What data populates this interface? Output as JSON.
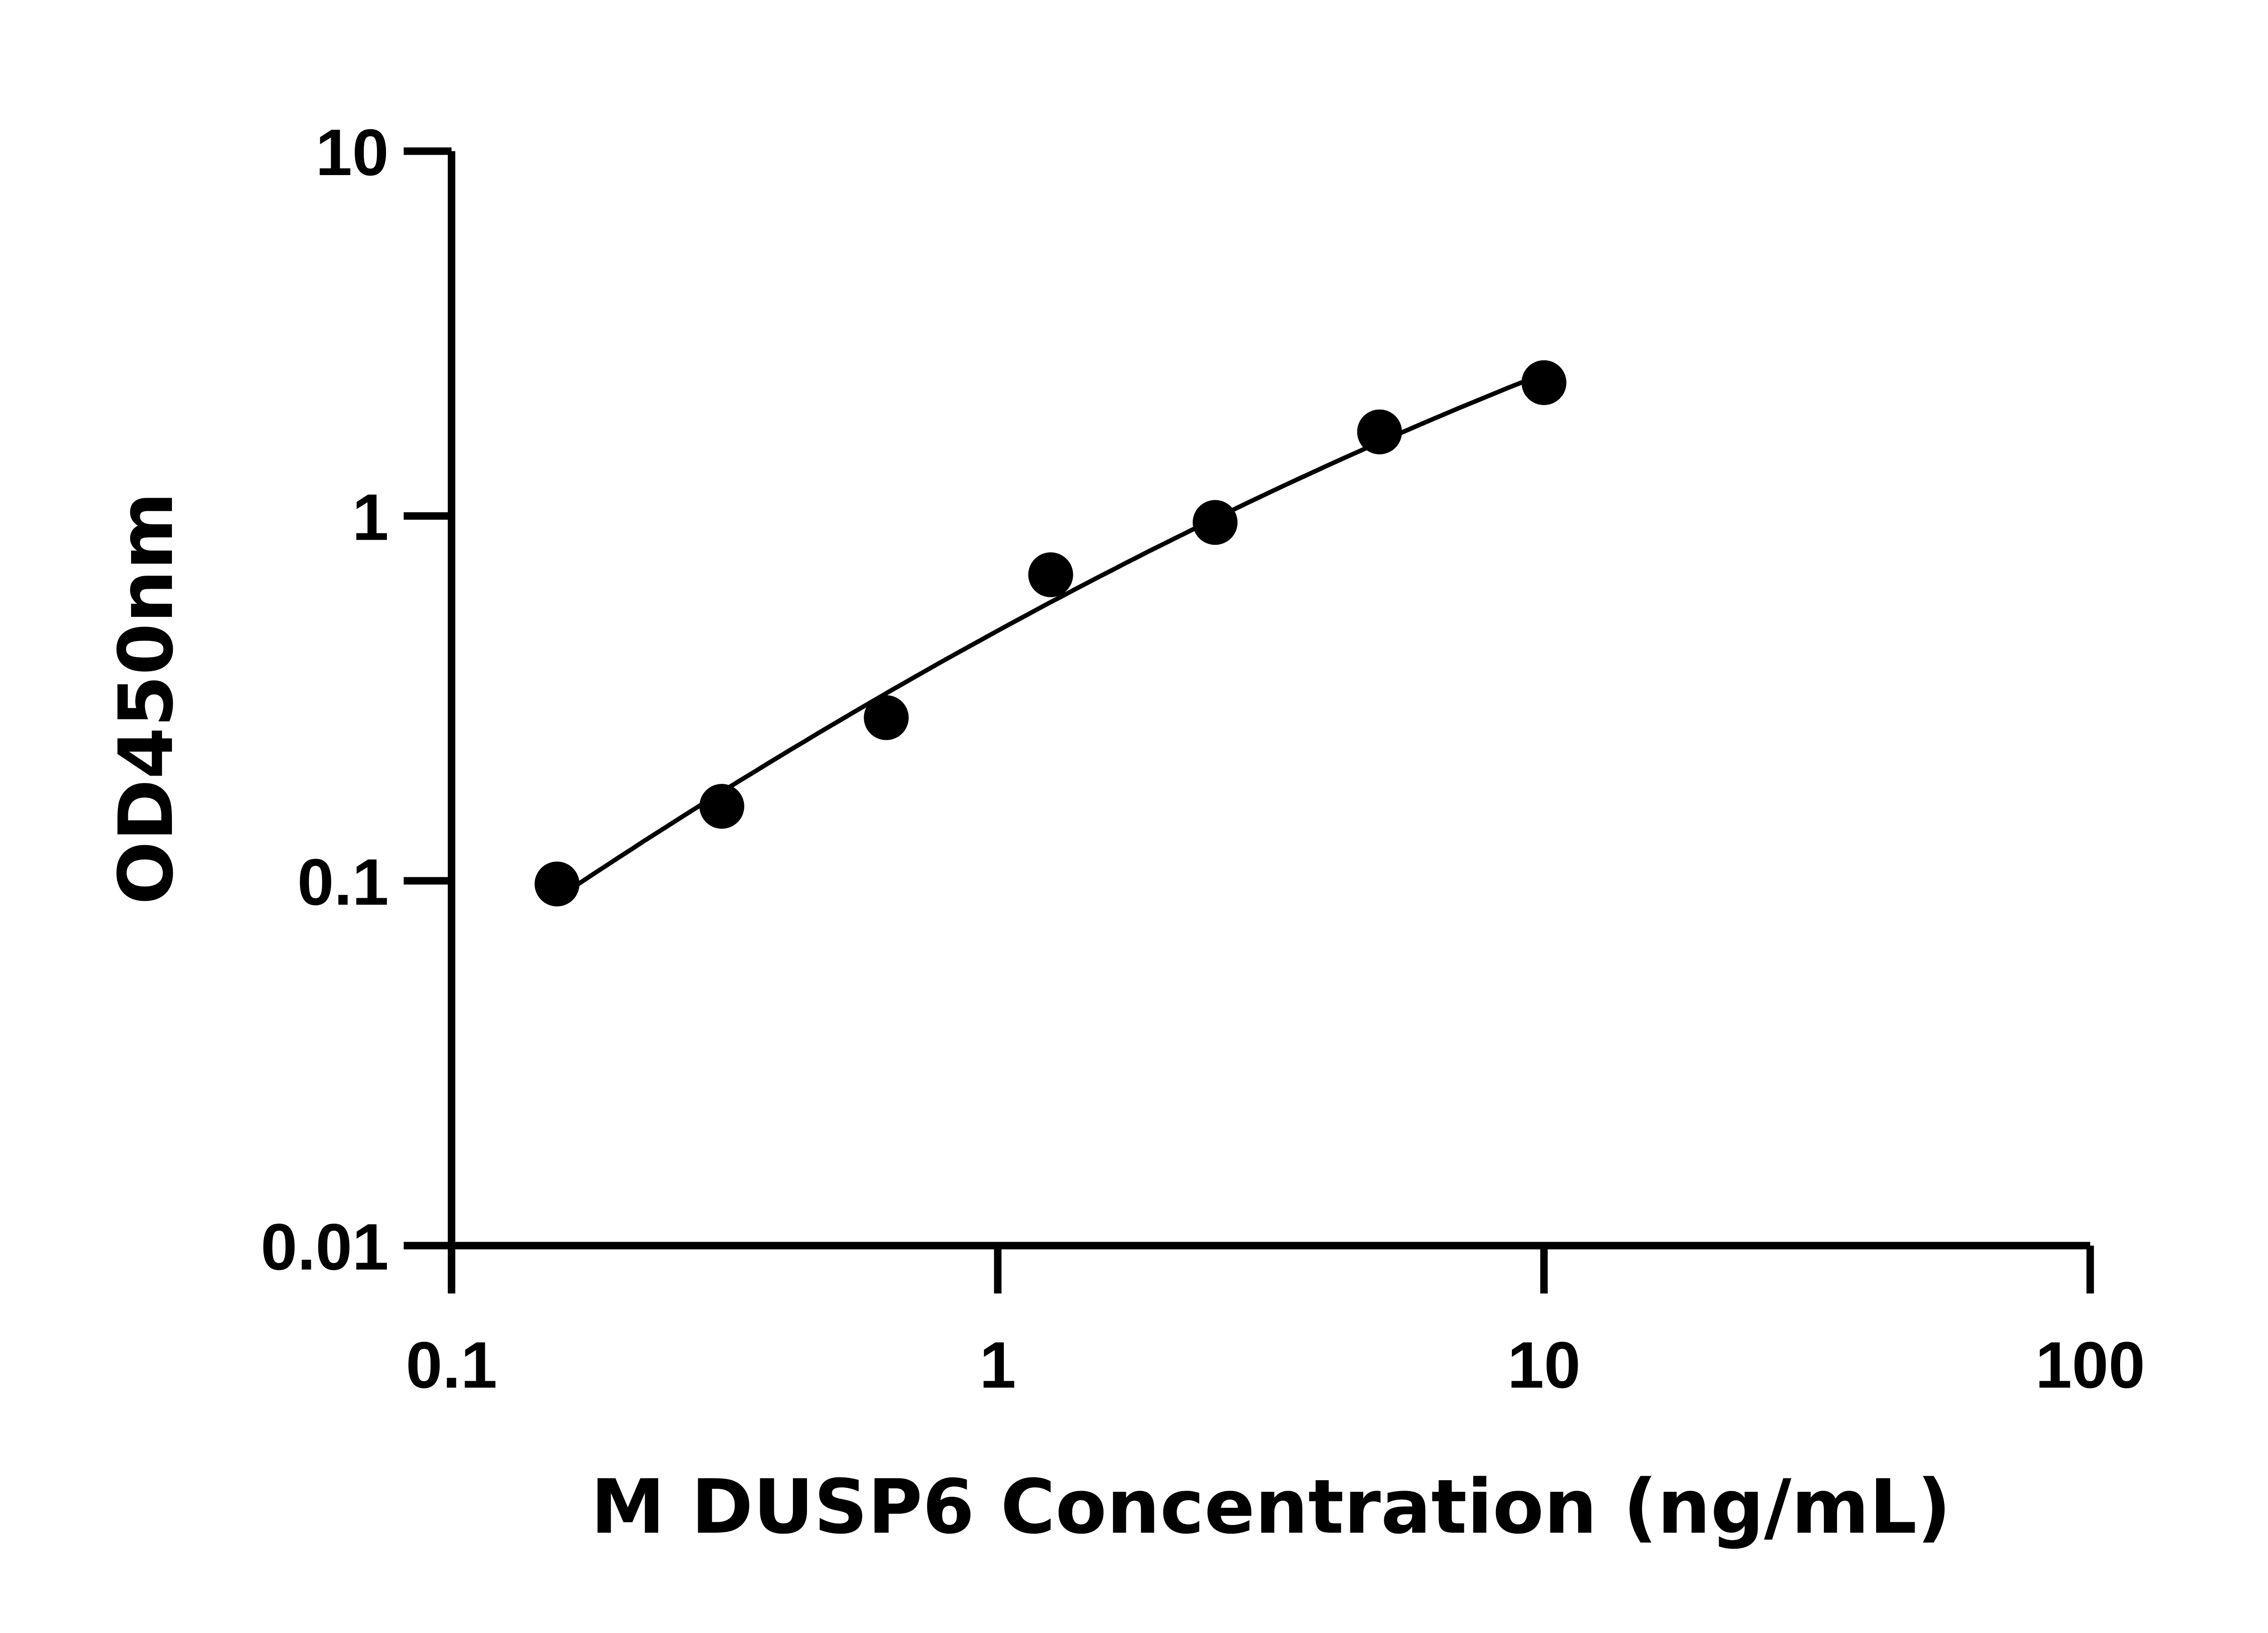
{
  "chart_data": {
    "type": "scatter",
    "title": "",
    "xlabel": "M DUSP6 Concentration (ng/mL)",
    "ylabel": "OD450nm",
    "x_scale": "log",
    "y_scale": "log",
    "xlim": [
      0.1,
      100
    ],
    "ylim": [
      0.01,
      10
    ],
    "x_ticks": [
      "0.1",
      "1",
      "10",
      "100"
    ],
    "y_ticks": [
      "0.01",
      "0.1",
      "1",
      "10"
    ],
    "grid": false,
    "fit_curve": true,
    "colors": {
      "marker": "#000000",
      "line": "#000000"
    },
    "series": [
      {
        "x": [
          0.156,
          0.3125,
          0.625,
          1.25,
          2.5,
          5,
          10
        ],
        "y": [
          0.098,
          0.16,
          0.28,
          0.69,
          0.96,
          1.7,
          2.32
        ]
      }
    ]
  }
}
